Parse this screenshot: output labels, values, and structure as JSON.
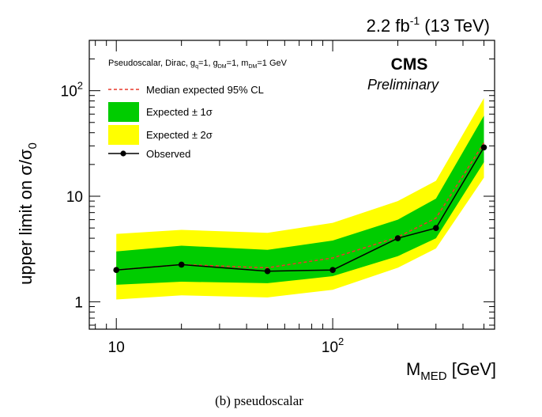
{
  "chart_data": {
    "type": "line",
    "lumi_label": {
      "prefix": "2.2 fb",
      "superscript": "-1",
      "suffix": " (13 TeV)"
    },
    "experiment": "CMS",
    "status": "Preliminary",
    "model": {
      "pre": "Pseudoscalar, Dirac, g",
      "q_sub": "q",
      "mid1": "=1, g",
      "dm_sub": "DM",
      "mid2": "=1, m",
      "dm_sub2": "DM",
      "post": "=1 GeV"
    },
    "xlabel": {
      "main": "M",
      "sub": "MED",
      "unit": " [GeV]"
    },
    "ylabel": "upper limit on σ/σ",
    "ylabel_sub": "0",
    "caption": "(b) pseudoscalar",
    "x_scale": "log",
    "y_scale": "log",
    "xlim": [
      7.5,
      560
    ],
    "ylim": [
      0.55,
      300
    ],
    "x_ticks": [
      {
        "value": 10,
        "label": "10",
        "sup": ""
      },
      {
        "value": 100,
        "label": "10",
        "sup": "2"
      }
    ],
    "y_ticks": [
      {
        "value": 1,
        "label": "1",
        "sup": ""
      },
      {
        "value": 10,
        "label": "10",
        "sup": ""
      },
      {
        "value": 100,
        "label": "10",
        "sup": "2"
      }
    ],
    "legend_position": "top-left",
    "legend": {
      "expected": "Median expected 95% CL",
      "band1": "Expected ± 1σ",
      "band2": "Expected ± 2σ",
      "observed": "Observed"
    },
    "x": [
      10,
      20,
      50,
      100,
      200,
      300,
      500
    ],
    "series": [
      {
        "name": "Observed",
        "values": [
          2.0,
          2.25,
          1.95,
          2.0,
          4.0,
          5.0,
          29
        ]
      },
      {
        "name": "Median expected 95% CL",
        "values": [
          2.0,
          2.25,
          2.1,
          2.6,
          4.1,
          6.2,
          32
        ]
      }
    ],
    "band_1sigma": {
      "low": [
        1.45,
        1.55,
        1.5,
        1.75,
        2.7,
        4.0,
        21
      ],
      "high": [
        3.0,
        3.4,
        3.1,
        3.8,
        6.0,
        9.5,
        58
      ]
    },
    "band_2sigma": {
      "low": [
        1.05,
        1.15,
        1.1,
        1.3,
        2.1,
        3.2,
        15
      ],
      "high": [
        4.4,
        4.8,
        4.5,
        5.6,
        9.0,
        14,
        85
      ]
    },
    "colors": {
      "band_2sigma": "#ffff00",
      "band_1sigma": "#00cc00",
      "expected": "#e8392b",
      "observed": "#000000"
    }
  }
}
